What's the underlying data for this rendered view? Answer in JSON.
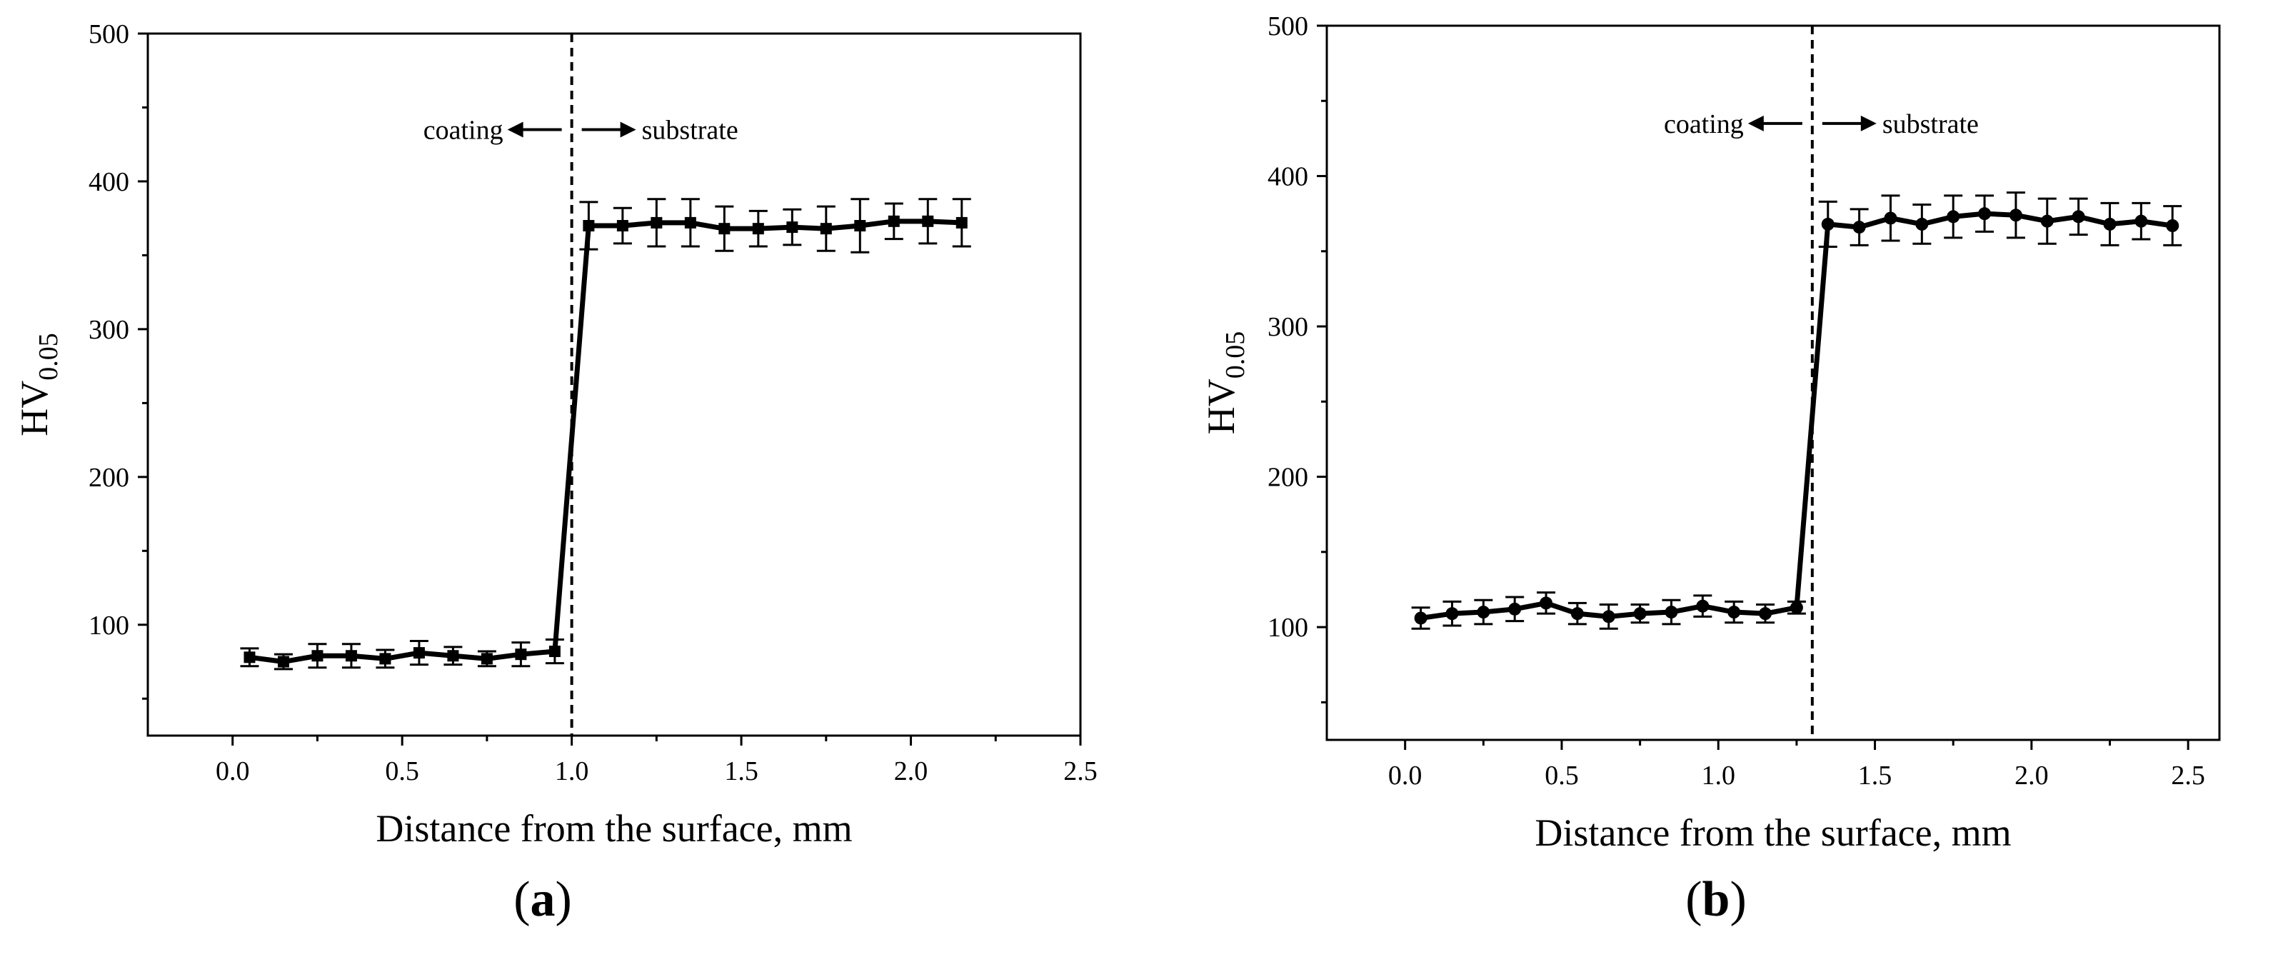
{
  "chart_data": [
    {
      "type": "line",
      "panel_label": "(a)",
      "title": "",
      "xlabel": "Distance from the surface, mm",
      "ylabel_main": "HV",
      "ylabel_sub": "0.05",
      "xlim": [
        -0.25,
        2.5
      ],
      "ylim": [
        25,
        500
      ],
      "xticks": [
        0.0,
        0.5,
        1.0,
        1.5,
        2.0,
        2.5
      ],
      "xtick_labels": [
        "0.0",
        "0.5",
        "1.0",
        "1.5",
        "2.0",
        "2.5"
      ],
      "yticks": [
        100,
        200,
        300,
        400,
        500
      ],
      "ytick_labels": [
        "100",
        "200",
        "300",
        "400",
        "500"
      ],
      "boundary_x": 1.0,
      "annotation_left": "coating",
      "annotation_right": "substrate",
      "annotation_y": 435,
      "marker": "square",
      "series": [
        {
          "name": "HV0.05",
          "x": [
            0.05,
            0.15,
            0.25,
            0.35,
            0.45,
            0.55,
            0.65,
            0.75,
            0.85,
            0.95,
            1.05,
            1.15,
            1.25,
            1.35,
            1.45,
            1.55,
            1.65,
            1.75,
            1.85,
            1.95,
            2.05,
            2.15
          ],
          "y": [
            78,
            75,
            79,
            79,
            77,
            81,
            79,
            77,
            80,
            82,
            370,
            370,
            372,
            372,
            368,
            368,
            369,
            368,
            370,
            373,
            373,
            372
          ],
          "err": [
            6,
            5,
            8,
            8,
            6,
            8,
            6,
            5,
            8,
            8,
            16,
            12,
            16,
            16,
            15,
            12,
            12,
            15,
            18,
            12,
            15,
            16
          ]
        }
      ]
    },
    {
      "type": "line",
      "panel_label": "(b)",
      "title": "",
      "xlabel": "Distance from the surface, mm",
      "ylabel_main": "HV",
      "ylabel_sub": "0.05",
      "xlim": [
        -0.25,
        2.6
      ],
      "ylim": [
        25,
        500
      ],
      "xticks": [
        0.0,
        0.5,
        1.0,
        1.5,
        2.0,
        2.5
      ],
      "xtick_labels": [
        "0.0",
        "0.5",
        "1.0",
        "1.5",
        "2.0",
        "2.5"
      ],
      "yticks": [
        100,
        200,
        300,
        400,
        500
      ],
      "ytick_labels": [
        "100",
        "200",
        "300",
        "400",
        "500"
      ],
      "boundary_x": 1.3,
      "annotation_left": "coating",
      "annotation_right": "substrate",
      "annotation_y": 435,
      "marker": "circle",
      "series": [
        {
          "name": "HV0.05",
          "x": [
            0.05,
            0.15,
            0.25,
            0.35,
            0.45,
            0.55,
            0.65,
            0.75,
            0.85,
            0.95,
            1.05,
            1.15,
            1.25,
            1.35,
            1.45,
            1.55,
            1.65,
            1.75,
            1.85,
            1.95,
            2.05,
            2.15,
            2.25,
            2.35,
            2.45
          ],
          "y": [
            106,
            109,
            110,
            112,
            116,
            109,
            107,
            109,
            110,
            114,
            110,
            109,
            113,
            368,
            366,
            372,
            368,
            373,
            375,
            374,
            370,
            373,
            368,
            370,
            367
          ],
          "err": [
            7,
            8,
            8,
            8,
            7,
            7,
            8,
            6,
            8,
            7,
            7,
            6,
            4,
            15,
            12,
            15,
            13,
            14,
            12,
            15,
            15,
            12,
            14,
            12,
            13
          ]
        }
      ]
    }
  ]
}
